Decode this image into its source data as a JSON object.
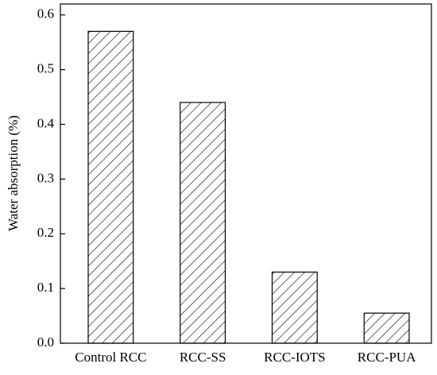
{
  "chart_data": {
    "type": "bar",
    "y_label": "Water absorption (%)",
    "categories": [
      "Control RCC",
      "RCC-SS",
      "RCC-IOTS",
      "RCC-PUA"
    ],
    "values": [
      0.57,
      0.44,
      0.13,
      0.055
    ],
    "color": "#000000",
    "ylim": [
      0,
      0.62
    ],
    "yticks": [
      {
        "value": 0,
        "label": "0.0"
      },
      0.1,
      0.2,
      0.3,
      0.4,
      0.5,
      0.6
    ]
  }
}
